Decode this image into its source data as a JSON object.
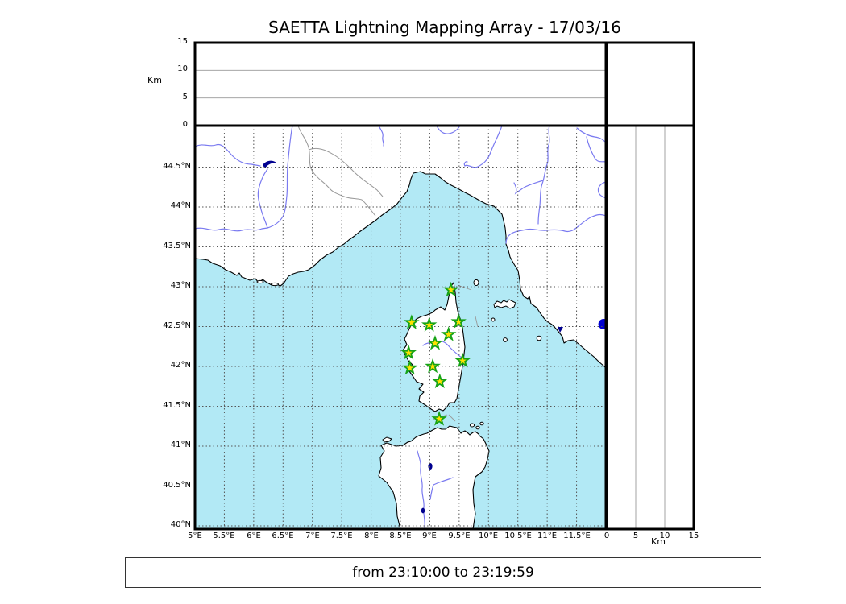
{
  "window": {
    "title": "SAETTA Lightning Mapping Array - 17/03/16"
  },
  "footer": {
    "text": "from 23:10:00 to 23:19:59"
  },
  "altitude_axis": {
    "label": "Km",
    "tick_labels": [
      "0",
      "5",
      "10",
      "15"
    ],
    "tick_values": [
      0,
      5,
      10,
      15
    ]
  },
  "right_km_axis": {
    "label": "Km",
    "tick_labels": [
      "0",
      "5",
      "10",
      "15"
    ],
    "tick_values": [
      0,
      5,
      10,
      15
    ]
  },
  "map": {
    "lat_tick_labels": [
      "44.5°N",
      "44°N",
      "43.5°N",
      "43°N",
      "42.5°N",
      "42°N",
      "41.5°N",
      "41°N",
      "40.5°N",
      "40°N"
    ],
    "lat_tick_values": [
      44.5,
      44.0,
      43.5,
      43.0,
      42.5,
      42.0,
      41.5,
      41.0,
      40.5,
      40.0
    ],
    "lon_tick_labels": [
      "5°E",
      "5.5°E",
      "6°E",
      "6.5°E",
      "7°E",
      "7.5°E",
      "8°E",
      "8.5°E",
      "9°E",
      "9.5°E",
      "10°E",
      "10.5°E",
      "11°E",
      "11.5°E"
    ],
    "lon_tick_values": [
      5,
      5.5,
      6,
      6.5,
      7,
      7.5,
      8,
      8.5,
      9,
      9.5,
      10,
      10.5,
      11,
      11.5
    ]
  },
  "chart_data": {
    "type": "scatter",
    "title": "SAETTA Lightning Mapping Array - 17/03/16",
    "time_window": "from 23:10:00 to 23:19:59",
    "map_panel": {
      "xlim": [
        5,
        12
      ],
      "ylim": [
        40,
        45
      ],
      "x_unit": "degrees E longitude",
      "y_unit": "degrees N latitude",
      "grid": true,
      "grid_step_deg": 0.5,
      "lightning_sources": []
    },
    "altitude_panel_top": {
      "ylabel": "Km",
      "ylim": [
        0,
        15
      ],
      "gridlines_km": [
        5,
        10
      ],
      "lightning_sources": []
    },
    "altitude_panel_right": {
      "xlabel": "Km",
      "xlim": [
        0,
        15
      ],
      "gridlines_km": [
        5,
        10
      ],
      "lightning_sources": []
    },
    "stations": [
      {
        "lon": 9.36,
        "lat": 42.96
      },
      {
        "lon": 8.69,
        "lat": 42.55
      },
      {
        "lon": 8.99,
        "lat": 42.52
      },
      {
        "lon": 9.49,
        "lat": 42.56
      },
      {
        "lon": 9.32,
        "lat": 42.4
      },
      {
        "lon": 9.09,
        "lat": 42.29
      },
      {
        "lon": 8.64,
        "lat": 42.17
      },
      {
        "lon": 9.56,
        "lat": 42.07
      },
      {
        "lon": 9.05,
        "lat": 42.0
      },
      {
        "lon": 8.66,
        "lat": 41.98
      },
      {
        "lon": 9.17,
        "lat": 41.81
      },
      {
        "lon": 9.16,
        "lat": 41.34
      }
    ],
    "lake_marker": {
      "lon": 11.96,
      "lat": 42.53
    }
  },
  "colors": {
    "sea": "#b2e9f5",
    "land": "#ffffff",
    "coast": "#000000",
    "river": "#7a7af0",
    "admin_border": "#999999",
    "grid": "#555555",
    "lake": "#00008f",
    "station_fill": "#ffe100",
    "station_stroke": "#17a317",
    "lake_dot": "#0000cf"
  }
}
